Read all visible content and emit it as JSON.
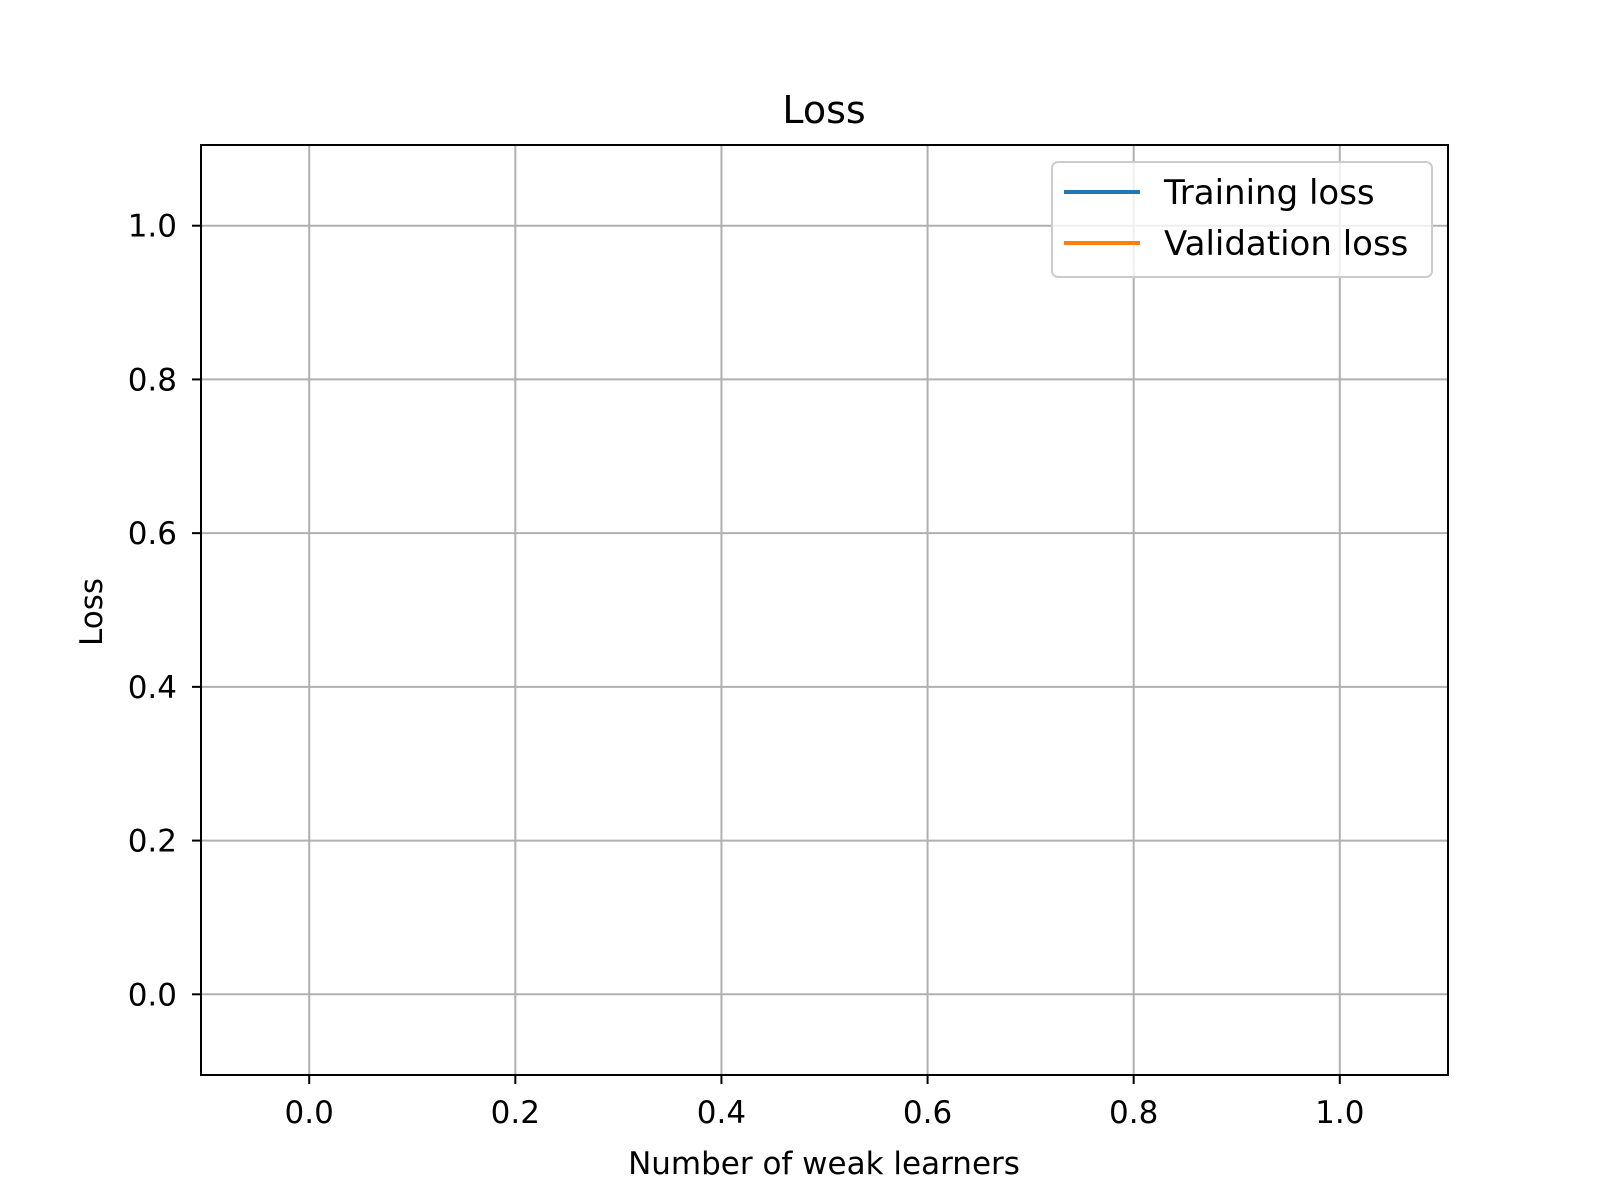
{
  "chart_data": {
    "type": "line",
    "title": "Loss",
    "xlabel": "Number of weak learners",
    "ylabel": "Loss",
    "xlim": [
      -0.105,
      1.105
    ],
    "ylim": [
      -0.105,
      1.105
    ],
    "xticks": [
      "0.0",
      "0.2",
      "0.4",
      "0.6",
      "0.8",
      "1.0"
    ],
    "yticks": [
      "0.0",
      "0.2",
      "0.4",
      "0.6",
      "0.8",
      "1.0"
    ],
    "grid": true,
    "legend_position": "top-right",
    "series": [
      {
        "name": "Training loss",
        "color": "#1f77b4",
        "x": [],
        "y": []
      },
      {
        "name": "Validation loss",
        "color": "#ff7f0e",
        "x": [],
        "y": []
      }
    ]
  }
}
